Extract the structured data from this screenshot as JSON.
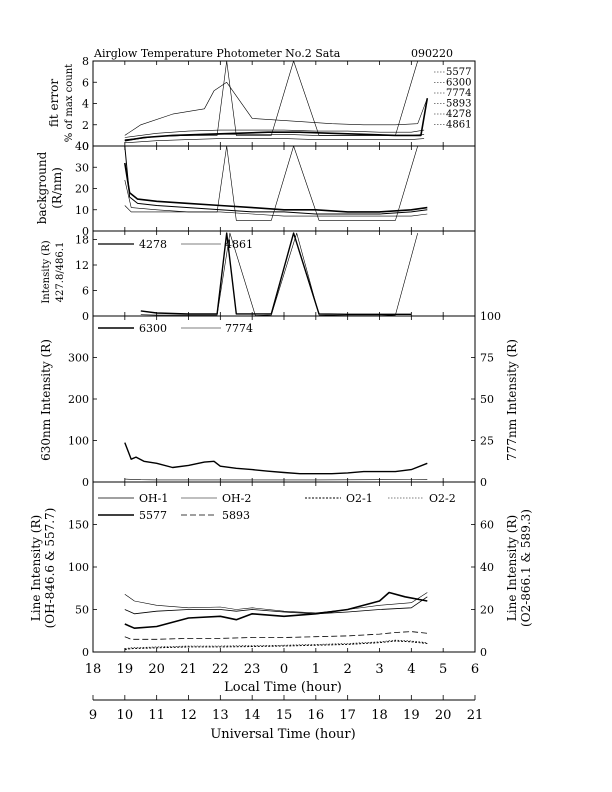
{
  "header": {
    "title": "Airglow Temperature Photometer No.2  Sata",
    "date": "090220"
  },
  "chart_data": [
    {
      "type": "line",
      "panel": "fit-error",
      "ylabel": "fit error",
      "ylabel2": "% of max count",
      "ylim": [
        0,
        8
      ],
      "yticks": [
        0,
        2,
        4,
        6,
        8
      ],
      "legend": [
        "5577",
        "6300",
        "7774",
        "5893",
        "4278",
        "4861"
      ],
      "series": [
        {
          "name": "5577",
          "x": [
            19.0,
            19.6,
            20.5,
            21.5,
            22.5,
            23.5,
            0.5,
            1.5,
            2.5,
            3.5,
            4.3,
            4.5
          ],
          "values": [
            0.5,
            0.8,
            1.0,
            1.1,
            1.2,
            1.3,
            1.3,
            1.2,
            1.1,
            1.0,
            1.0,
            4.5
          ]
        },
        {
          "name": "6300",
          "x": [
            19.0,
            19.5,
            20.5,
            21.5,
            21.8,
            22.2,
            23.0,
            0.5,
            1.5,
            2.5,
            3.5,
            4.2,
            4.5
          ],
          "values": [
            1.0,
            2.0,
            3.0,
            3.5,
            5.2,
            6.0,
            2.6,
            2.3,
            2.1,
            2.0,
            2.0,
            2.1,
            4.5
          ]
        },
        {
          "name": "7774",
          "x": [
            19.0,
            20.0,
            21.0,
            22.0,
            23.0,
            0.0,
            1.0,
            2.0,
            3.0,
            4.0,
            4.4
          ],
          "values": [
            0.6,
            0.9,
            1.0,
            1.1,
            1.1,
            1.1,
            1.0,
            1.0,
            1.0,
            1.0,
            1.1
          ]
        },
        {
          "name": "5893",
          "x": [
            19.0,
            20.0,
            21.0,
            22.0,
            23.0,
            0.0,
            1.0,
            2.0,
            3.0,
            4.0,
            4.4
          ],
          "values": [
            0.3,
            0.5,
            0.6,
            0.7,
            0.7,
            0.7,
            0.6,
            0.6,
            0.6,
            0.6,
            0.7
          ]
        },
        {
          "name": "4278",
          "x": [
            19.0,
            20.0,
            21.0,
            21.9,
            22.2,
            22.5,
            23.1,
            23.6,
            0.3,
            1.1,
            3.5,
            4.2
          ],
          "values": [
            0.5,
            0.9,
            1.0,
            1.0,
            8.0,
            1.0,
            1.0,
            1.0,
            8.0,
            1.0,
            1.0,
            8.0
          ]
        },
        {
          "name": "4861",
          "x": [
            19.0,
            20.0,
            21.0,
            22.0,
            23.0,
            0.0,
            1.0,
            2.0,
            3.0,
            4.0,
            4.4
          ],
          "values": [
            0.8,
            1.2,
            1.4,
            1.5,
            1.5,
            1.5,
            1.4,
            1.4,
            1.3,
            1.3,
            1.5
          ]
        }
      ]
    },
    {
      "type": "line",
      "panel": "background",
      "ylabel": "background",
      "ylabel2": "(R/nm)",
      "ylim": [
        0,
        40
      ],
      "yticks": [
        0,
        10,
        20,
        30,
        40
      ],
      "series": [
        {
          "x": [
            19.0,
            19.15,
            19.4,
            20.0,
            21.0,
            22.0,
            23.0,
            0.0,
            1.0,
            2.0,
            3.0,
            4.0,
            4.5
          ],
          "values": [
            32,
            18,
            15,
            14,
            13,
            12,
            11,
            10,
            10,
            9,
            9,
            10,
            11
          ]
        },
        {
          "x": [
            19.0,
            19.15,
            19.4,
            20.0,
            21.0,
            22.0,
            23.0,
            0.0,
            1.0,
            2.0,
            3.0,
            4.0,
            4.5
          ],
          "values": [
            48,
            16,
            13,
            12,
            11,
            10,
            9,
            9,
            8,
            8,
            8,
            9,
            10
          ]
        },
        {
          "x": [
            19.0,
            19.2,
            20.0,
            21.0,
            22.0,
            23.0,
            0.0,
            1.0,
            2.0,
            3.0,
            4.0,
            4.5
          ],
          "values": [
            24,
            11,
            10,
            9,
            9,
            8,
            7,
            7,
            7,
            7,
            7,
            8
          ]
        },
        {
          "x": [
            19.0,
            19.2,
            21.9,
            22.2,
            22.5,
            23.1,
            23.6,
            0.3,
            1.1,
            3.5,
            4.2
          ],
          "values": [
            12,
            9,
            9,
            40,
            5,
            5,
            5,
            40,
            5,
            5,
            40
          ]
        }
      ]
    },
    {
      "type": "line",
      "panel": "intensity-4278-4861",
      "ylabel": "Intensity (R)",
      "ylabel2": "427.8/486.1",
      "ylim": [
        0,
        20
      ],
      "yticks": [
        0,
        6,
        12,
        18
      ],
      "legend": [
        "4278",
        "4861"
      ],
      "series": [
        {
          "name": "4278",
          "x": [
            19.5,
            20.0,
            21.0,
            21.9,
            22.2,
            22.5,
            23.1,
            23.6,
            0.3,
            1.1,
            2.0,
            3.0,
            4.0
          ],
          "values": [
            1.2,
            0.7,
            0.5,
            0.5,
            19.5,
            0.5,
            0.5,
            0.5,
            19.5,
            0.5,
            0.4,
            0.4,
            0.4
          ]
        },
        {
          "name": "4861",
          "x": [
            19.5,
            20.0,
            21.0,
            21.9,
            22.3,
            23.1,
            23.6,
            0.4,
            1.1,
            2.0,
            3.0,
            3.5,
            4.2
          ],
          "values": [
            0.3,
            0.2,
            0.2,
            0.2,
            19.5,
            0.1,
            0.2,
            19.5,
            0.2,
            0.1,
            0.1,
            0.2,
            19.5
          ]
        }
      ]
    },
    {
      "type": "line",
      "panel": "intensity-6300-7774",
      "ylabel": "630nm Intensity (R)",
      "ylabel_right": "777nm Intensity (R)",
      "ylim": [
        0,
        400
      ],
      "ylim_right": [
        0,
        100
      ],
      "yticks": [
        0,
        100,
        200,
        300
      ],
      "yticks_right": [
        0,
        25,
        50,
        75,
        100
      ],
      "legend": [
        "6300",
        "7774"
      ],
      "series": [
        {
          "name": "6300",
          "x": [
            19.0,
            19.2,
            19.35,
            19.6,
            20.0,
            20.5,
            21.0,
            21.5,
            21.8,
            22.0,
            22.5,
            23.0,
            23.5,
            0.0,
            0.5,
            1.0,
            1.5,
            2.0,
            2.5,
            3.0,
            3.5,
            4.0,
            4.5
          ],
          "values": [
            95,
            55,
            60,
            50,
            45,
            35,
            40,
            48,
            50,
            38,
            33,
            30,
            26,
            23,
            20,
            20,
            20,
            22,
            25,
            25,
            25,
            30,
            45
          ]
        },
        {
          "name": "7774",
          "x": [
            19.0,
            19.5,
            20.0,
            21.0,
            22.0,
            23.0,
            0.0,
            1.0,
            2.0,
            3.0,
            4.0,
            4.5
          ],
          "values": [
            7,
            5.5,
            5,
            5,
            5,
            5,
            5,
            5,
            5.2,
            5.5,
            6,
            6.5
          ]
        }
      ]
    },
    {
      "type": "line",
      "panel": "line-intensity",
      "ylabel": "Line Intensity (R)",
      "ylabel2": "(OH-846.6 & 557.7)",
      "ylabel_right": "Line Intensity (R)",
      "ylabel_right2": "(O2-866.1 & 589.3)",
      "ylim": [
        0,
        200
      ],
      "ylim_right": [
        0,
        80
      ],
      "yticks": [
        0,
        50,
        100,
        150
      ],
      "yticks_right": [
        0,
        20,
        40,
        60
      ],
      "legend": [
        "OH-1",
        "OH-2",
        "O2-1",
        "O2-2",
        "5577",
        "5893"
      ],
      "series": [
        {
          "name": "OH-1",
          "x": [
            19.0,
            19.3,
            20.0,
            21.0,
            22.0,
            22.5,
            23.0,
            0.0,
            1.0,
            2.0,
            3.0,
            4.0,
            4.5
          ],
          "values": [
            50,
            45,
            48,
            50,
            50,
            48,
            50,
            47,
            45,
            47,
            50,
            52,
            65
          ]
        },
        {
          "name": "OH-2",
          "x": [
            19.0,
            19.3,
            20.0,
            21.0,
            22.0,
            22.5,
            23.0,
            0.0,
            1.0,
            2.0,
            3.0,
            4.0,
            4.5
          ],
          "values": [
            68,
            60,
            55,
            52,
            53,
            50,
            52,
            48,
            46,
            50,
            55,
            58,
            70
          ]
        },
        {
          "name": "O2-1",
          "x": [
            19.0,
            19.2,
            20.0,
            21.0,
            22.0,
            23.0,
            0.0,
            1.0,
            2.0,
            3.0,
            3.5,
            4.0,
            4.5
          ],
          "values": [
            3,
            4,
            5,
            6,
            6,
            6.5,
            7,
            8,
            9,
            11,
            13,
            12,
            10
          ]
        },
        {
          "name": "O2-2",
          "x": [
            19.0,
            19.2,
            20.0,
            21.0,
            22.0,
            23.0,
            0.0,
            1.0,
            2.0,
            3.0,
            3.5,
            4.0,
            4.5
          ],
          "values": [
            4,
            5,
            6,
            7,
            7,
            7.5,
            8,
            9,
            10,
            12,
            14,
            13,
            11
          ]
        },
        {
          "name": "5577",
          "x": [
            19.0,
            19.3,
            20.0,
            21.0,
            22.0,
            22.5,
            23.0,
            0.0,
            1.0,
            2.0,
            3.0,
            3.3,
            3.8,
            4.5
          ],
          "values": [
            33,
            28,
            30,
            40,
            42,
            38,
            45,
            42,
            45,
            50,
            60,
            70,
            65,
            60
          ]
        },
        {
          "name": "5893",
          "x": [
            19.0,
            19.2,
            20.0,
            21.0,
            22.0,
            23.0,
            0.0,
            1.0,
            2.0,
            3.0,
            3.5,
            4.0,
            4.5
          ],
          "values": [
            18,
            15,
            15,
            16,
            16,
            17,
            17,
            18,
            19,
            21,
            23,
            24,
            22
          ]
        }
      ]
    }
  ],
  "axes": {
    "local_time": {
      "label": "Local Time (hour)",
      "ticks": [
        "18",
        "19",
        "20",
        "21",
        "22",
        "23",
        "0",
        "1",
        "2",
        "3",
        "4",
        "5",
        "6"
      ]
    },
    "universal_time": {
      "label": "Universal Time (hour)",
      "ticks": [
        "9",
        "10",
        "11",
        "12",
        "13",
        "14",
        "15",
        "16",
        "17",
        "18",
        "19",
        "20",
        "21"
      ]
    }
  }
}
